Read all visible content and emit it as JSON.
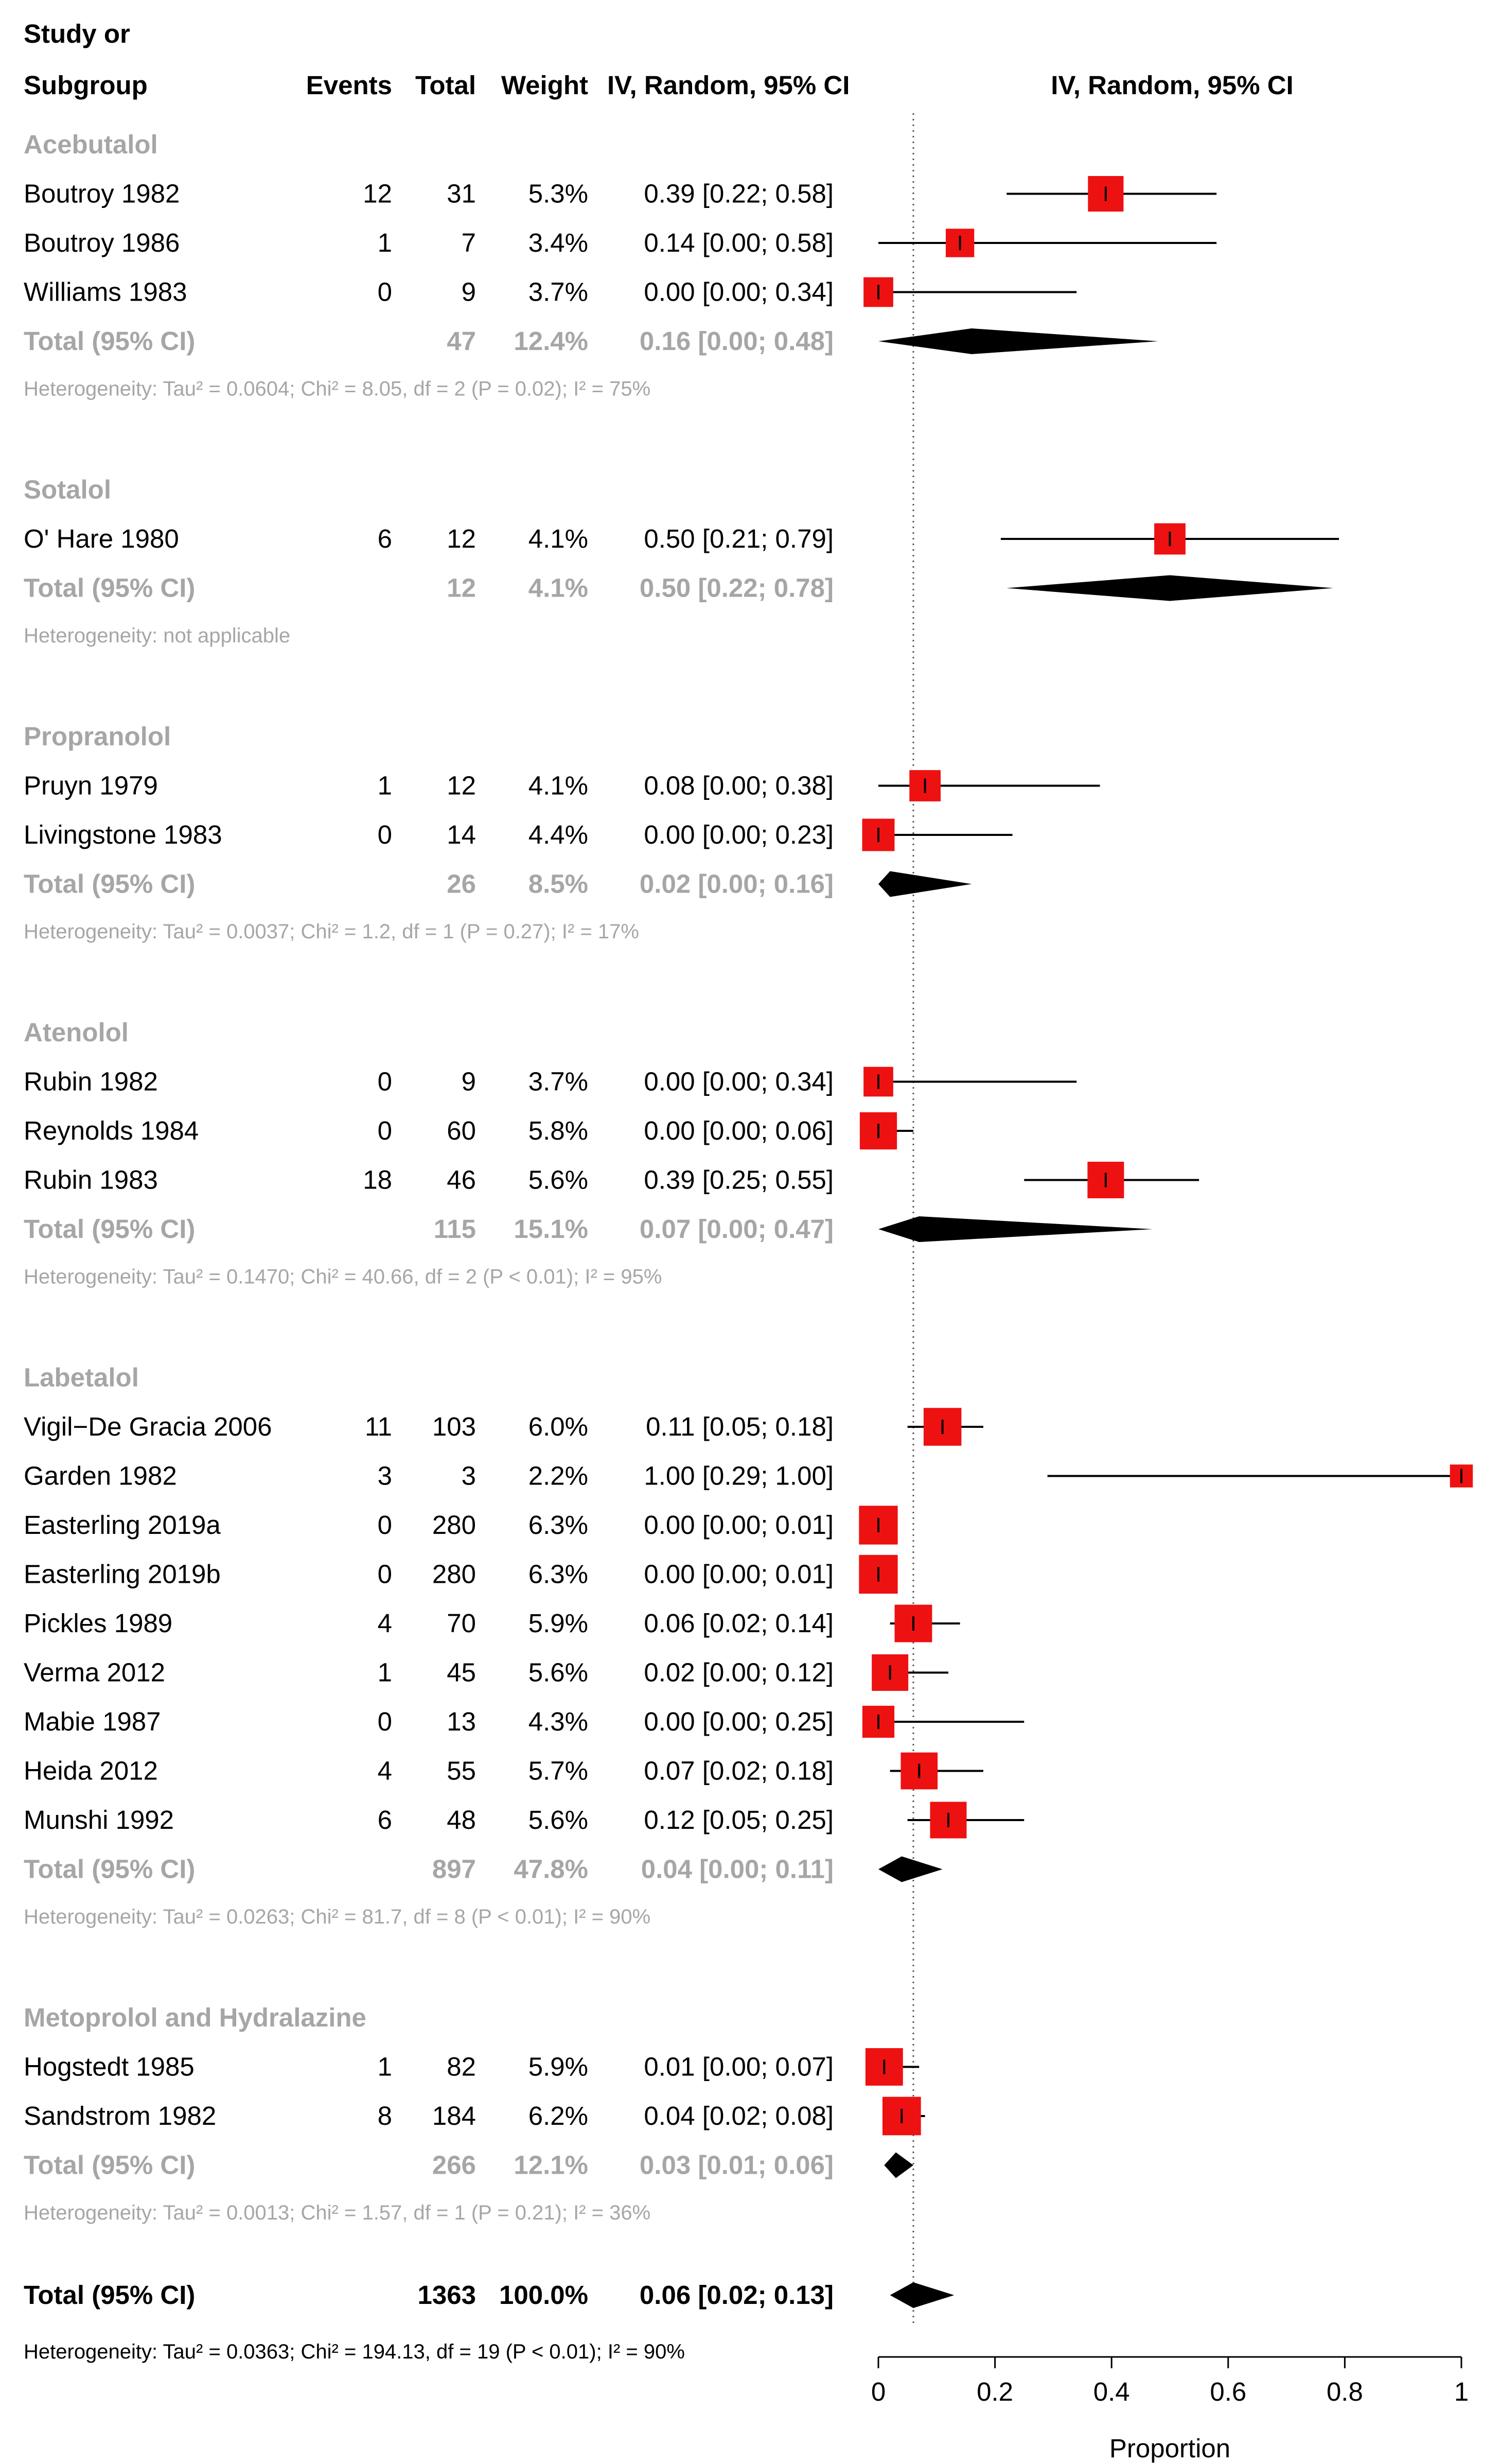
{
  "chart_data": {
    "type": "forest",
    "title": "",
    "columns": {
      "study_line1": "Study or",
      "study_line2": "Subgroup",
      "events": "Events",
      "total": "Total",
      "weight": "Weight",
      "ci": "IV, Random, 95% CI",
      "plot": "IV, Random, 95% CI"
    },
    "xlabel": "Proportion",
    "xlim": [
      0,
      1
    ],
    "xticks": [
      0,
      0.2,
      0.4,
      0.6,
      0.8,
      1
    ],
    "xtick_labels": [
      "0",
      "0.2",
      "0.4",
      "0.6",
      "0.8",
      "1"
    ],
    "reference_line": 0.06,
    "subgroups": [
      {
        "name": "Acebutalol",
        "studies": [
          {
            "study": "Boutroy 1982",
            "events": "12",
            "total": "31",
            "weight": "5.3%",
            "ci_text": "0.39 [0.22; 0.58]",
            "est": 0.39,
            "lo": 0.22,
            "hi": 0.58,
            "w": 5.3
          },
          {
            "study": "Boutroy 1986",
            "events": "1",
            "total": "7",
            "weight": "3.4%",
            "ci_text": "0.14 [0.00; 0.58]",
            "est": 0.14,
            "lo": 0.0,
            "hi": 0.58,
            "w": 3.4
          },
          {
            "study": "Williams 1983",
            "events": "0",
            "total": "9",
            "weight": "3.7%",
            "ci_text": "0.00 [0.00; 0.34]",
            "est": 0.0,
            "lo": 0.0,
            "hi": 0.34,
            "w": 3.7
          }
        ],
        "total": {
          "label": "Total (95% CI)",
          "total": "47",
          "weight": "12.4%",
          "ci_text": "0.16 [0.00; 0.48]",
          "est": 0.16,
          "lo": 0.0,
          "hi": 0.48
        },
        "heterogeneity": "Heterogeneity: Tau² = 0.0604; Chi² = 8.05, df = 2 (P = 0.02); I² = 75%"
      },
      {
        "name": "Sotalol",
        "studies": [
          {
            "study": "O' Hare 1980",
            "events": "6",
            "total": "12",
            "weight": "4.1%",
            "ci_text": "0.50 [0.21; 0.79]",
            "est": 0.5,
            "lo": 0.21,
            "hi": 0.79,
            "w": 4.1
          }
        ],
        "total": {
          "label": "Total (95% CI)",
          "total": "12",
          "weight": "4.1%",
          "ci_text": "0.50 [0.22; 0.78]",
          "est": 0.5,
          "lo": 0.22,
          "hi": 0.78
        },
        "heterogeneity": "Heterogeneity: not applicable"
      },
      {
        "name": "Propranolol",
        "studies": [
          {
            "study": "Pruyn 1979",
            "events": "1",
            "total": "12",
            "weight": "4.1%",
            "ci_text": "0.08 [0.00; 0.38]",
            "est": 0.08,
            "lo": 0.0,
            "hi": 0.38,
            "w": 4.1
          },
          {
            "study": "Livingstone 1983",
            "events": "0",
            "total": "14",
            "weight": "4.4%",
            "ci_text": "0.00 [0.00; 0.23]",
            "est": 0.0,
            "lo": 0.0,
            "hi": 0.23,
            "w": 4.4
          }
        ],
        "total": {
          "label": "Total (95% CI)",
          "total": "26",
          "weight": "8.5%",
          "ci_text": "0.02 [0.00; 0.16]",
          "est": 0.02,
          "lo": 0.0,
          "hi": 0.16
        },
        "heterogeneity": "Heterogeneity: Tau² = 0.0037; Chi² = 1.2, df = 1 (P = 0.27); I² = 17%"
      },
      {
        "name": "Atenolol",
        "studies": [
          {
            "study": "Rubin 1982",
            "events": "0",
            "total": "9",
            "weight": "3.7%",
            "ci_text": "0.00 [0.00; 0.34]",
            "est": 0.0,
            "lo": 0.0,
            "hi": 0.34,
            "w": 3.7
          },
          {
            "study": "Reynolds 1984",
            "events": "0",
            "total": "60",
            "weight": "5.8%",
            "ci_text": "0.00 [0.00; 0.06]",
            "est": 0.0,
            "lo": 0.0,
            "hi": 0.06,
            "w": 5.8
          },
          {
            "study": "Rubin 1983",
            "events": "18",
            "total": "46",
            "weight": "5.6%",
            "ci_text": "0.39 [0.25; 0.55]",
            "est": 0.39,
            "lo": 0.25,
            "hi": 0.55,
            "w": 5.6
          }
        ],
        "total": {
          "label": "Total (95% CI)",
          "total": "115",
          "weight": "15.1%",
          "ci_text": "0.07 [0.00; 0.47]",
          "est": 0.07,
          "lo": 0.0,
          "hi": 0.47
        },
        "heterogeneity": "Heterogeneity: Tau² = 0.1470; Chi² = 40.66, df = 2 (P < 0.01); I² = 95%"
      },
      {
        "name": "Labetalol",
        "studies": [
          {
            "study": "Vigil−De Gracia 2006",
            "events": "11",
            "total": "103",
            "weight": "6.0%",
            "ci_text": "0.11 [0.05; 0.18]",
            "est": 0.11,
            "lo": 0.05,
            "hi": 0.18,
            "w": 6.0
          },
          {
            "study": "Garden 1982",
            "events": "3",
            "total": "3",
            "weight": "2.2%",
            "ci_text": "1.00 [0.29; 1.00]",
            "est": 1.0,
            "lo": 0.29,
            "hi": 1.0,
            "w": 2.2
          },
          {
            "study": "Easterling 2019a",
            "events": "0",
            "total": "280",
            "weight": "6.3%",
            "ci_text": "0.00 [0.00; 0.01]",
            "est": 0.0,
            "lo": 0.0,
            "hi": 0.01,
            "w": 6.3
          },
          {
            "study": "Easterling 2019b",
            "events": "0",
            "total": "280",
            "weight": "6.3%",
            "ci_text": "0.00 [0.00; 0.01]",
            "est": 0.0,
            "lo": 0.0,
            "hi": 0.01,
            "w": 6.3
          },
          {
            "study": "Pickles 1989",
            "events": "4",
            "total": "70",
            "weight": "5.9%",
            "ci_text": "0.06 [0.02; 0.14]",
            "est": 0.06,
            "lo": 0.02,
            "hi": 0.14,
            "w": 5.9
          },
          {
            "study": "Verma 2012",
            "events": "1",
            "total": "45",
            "weight": "5.6%",
            "ci_text": "0.02 [0.00; 0.12]",
            "est": 0.02,
            "lo": 0.0,
            "hi": 0.12,
            "w": 5.6
          },
          {
            "study": "Mabie 1987",
            "events": "0",
            "total": "13",
            "weight": "4.3%",
            "ci_text": "0.00 [0.00; 0.25]",
            "est": 0.0,
            "lo": 0.0,
            "hi": 0.25,
            "w": 4.3
          },
          {
            "study": "Heida 2012",
            "events": "4",
            "total": "55",
            "weight": "5.7%",
            "ci_text": "0.07 [0.02; 0.18]",
            "est": 0.07,
            "lo": 0.02,
            "hi": 0.18,
            "w": 5.7
          },
          {
            "study": "Munshi 1992",
            "events": "6",
            "total": "48",
            "weight": "5.6%",
            "ci_text": "0.12 [0.05; 0.25]",
            "est": 0.12,
            "lo": 0.05,
            "hi": 0.25,
            "w": 5.6
          }
        ],
        "total": {
          "label": "Total (95% CI)",
          "total": "897",
          "weight": "47.8%",
          "ci_text": "0.04 [0.00; 0.11]",
          "est": 0.04,
          "lo": 0.0,
          "hi": 0.11
        },
        "heterogeneity": "Heterogeneity: Tau² = 0.0263; Chi² = 81.7, df = 8 (P < 0.01); I² = 90%"
      },
      {
        "name": "Metoprolol and Hydralazine",
        "studies": [
          {
            "study": "Hogstedt 1985",
            "events": "1",
            "total": "82",
            "weight": "5.9%",
            "ci_text": "0.01 [0.00; 0.07]",
            "est": 0.01,
            "lo": 0.0,
            "hi": 0.07,
            "w": 5.9
          },
          {
            "study": "Sandstrom 1982",
            "events": "8",
            "total": "184",
            "weight": "6.2%",
            "ci_text": "0.04 [0.02; 0.08]",
            "est": 0.04,
            "lo": 0.02,
            "hi": 0.08,
            "w": 6.2
          }
        ],
        "total": {
          "label": "Total (95% CI)",
          "total": "266",
          "weight": "12.1%",
          "ci_text": "0.03 [0.01; 0.06]",
          "est": 0.03,
          "lo": 0.01,
          "hi": 0.06
        },
        "heterogeneity": "Heterogeneity: Tau² = 0.0013; Chi² = 1.57, df = 1 (P = 0.21); I² = 36%"
      }
    ],
    "overall": {
      "label": "Total (95% CI)",
      "total": "1363",
      "weight": "100.0%",
      "ci_text": "0.06 [0.02; 0.13]",
      "est": 0.06,
      "lo": 0.02,
      "hi": 0.13,
      "heterogeneity": "Heterogeneity: Tau² = 0.0363; Chi² = 194.13, df = 19 (P < 0.01); I² = 90%"
    },
    "colors": {
      "square": "#ee1111",
      "diamond": "#000000",
      "grey_text": "#a6a6a6"
    }
  }
}
